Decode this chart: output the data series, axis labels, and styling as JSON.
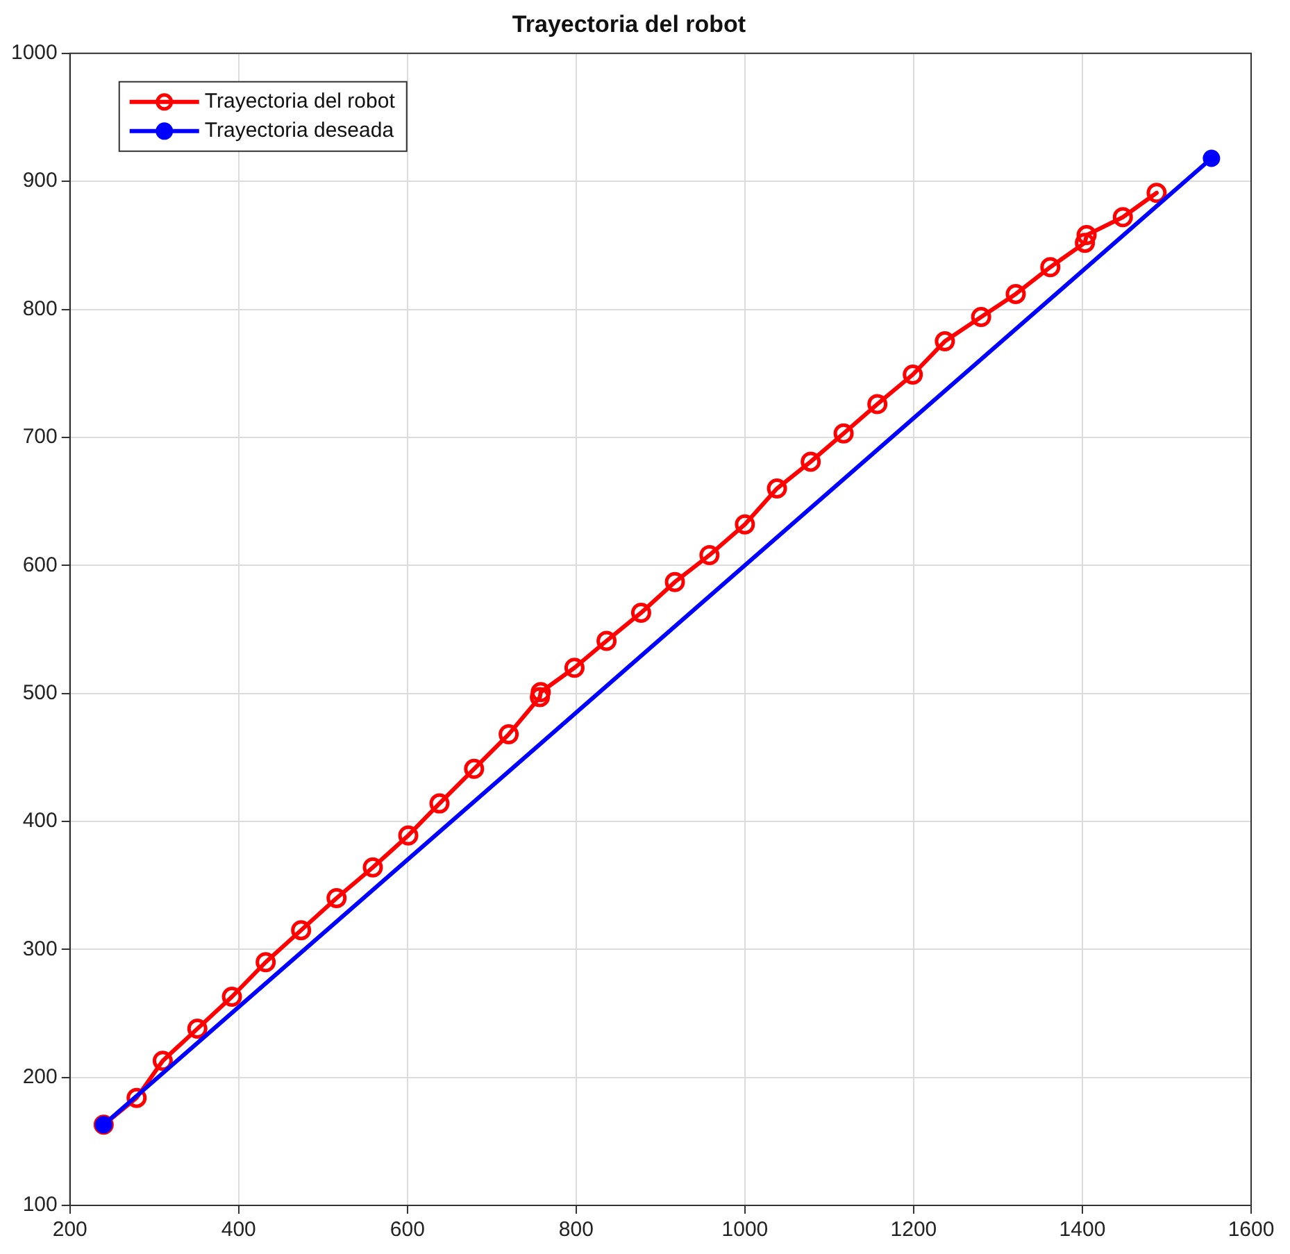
{
  "chart_data": {
    "type": "line",
    "title": "Trayectoria del robot",
    "xlim": [
      200,
      1600
    ],
    "xticks": [
      200,
      400,
      600,
      800,
      1000,
      1200,
      1400,
      1600
    ],
    "ylim": [
      100,
      1000
    ],
    "yticks": [
      100,
      200,
      300,
      400,
      500,
      600,
      700,
      800,
      900,
      1000
    ],
    "grid": true,
    "legend": "top left",
    "marker": "circle",
    "line_style": "solid",
    "series": [
      {
        "name": "Trayectoria del robot",
        "color": "#ff0000",
        "x": [
          240,
          279,
          310,
          351,
          392,
          432,
          474,
          516,
          559,
          601,
          638,
          679,
          720,
          757,
          758,
          798,
          836,
          877,
          917,
          958,
          1000,
          1038,
          1078,
          1117,
          1157,
          1199,
          1237,
          1280,
          1321,
          1362,
          1403,
          1405,
          1448,
          1488
        ],
        "values": [
          163,
          184,
          213,
          238,
          263,
          290,
          315,
          340,
          364,
          389,
          414,
          441,
          468,
          497,
          501,
          520,
          541,
          563,
          587,
          608,
          632,
          660,
          681,
          703,
          726,
          749,
          775,
          794,
          812,
          833,
          852,
          858,
          872,
          891
        ]
      },
      {
        "name": "Trayectoria deseada",
        "color": "#0000ff",
        "x": [
          240,
          1553
        ],
        "values": [
          163,
          918
        ]
      }
    ]
  }
}
